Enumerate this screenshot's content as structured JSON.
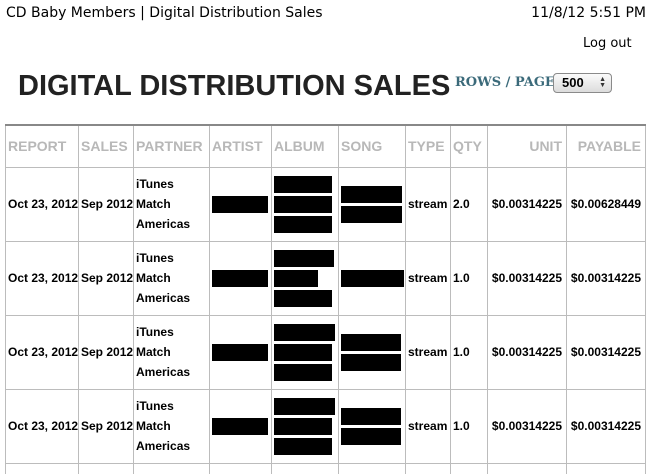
{
  "print_header": {
    "title": "CD Baby Members | Digital Distribution Sales",
    "datetime": "11/8/12 5:51 PM"
  },
  "logout_label": "Log out",
  "page_title": "DIGITAL DISTRIBUTION SALES",
  "rows_per_page": {
    "label": "ROWS / PAGE",
    "selected": "500"
  },
  "table": {
    "columns": [
      "REPORT",
      "SALES",
      "PARTNER",
      "ARTIST",
      "ALBUM",
      "SONG",
      "TYPE",
      "QTY",
      "UNIT",
      "PAYABLE"
    ],
    "rows": [
      {
        "report": "Oct 23, 2012",
        "sales": "Sep 2012",
        "partner": "iTunes Match Americas",
        "type": "stream",
        "qty": "2.0",
        "unit": "$0.00314225",
        "payable": "$0.00628449"
      },
      {
        "report": "Oct 23, 2012",
        "sales": "Sep 2012",
        "partner": "iTunes Match Americas",
        "type": "stream",
        "qty": "1.0",
        "unit": "$0.00314225",
        "payable": "$0.00314225"
      },
      {
        "report": "Oct 23, 2012",
        "sales": "Sep 2012",
        "partner": "iTunes Match Americas",
        "type": "stream",
        "qty": "1.0",
        "unit": "$0.00314225",
        "payable": "$0.00314225"
      },
      {
        "report": "Oct 23, 2012",
        "sales": "Sep 2012",
        "partner": "iTunes Match Americas",
        "type": "stream",
        "qty": "1.0",
        "unit": "$0.00314225",
        "payable": "$0.00314225"
      }
    ]
  }
}
